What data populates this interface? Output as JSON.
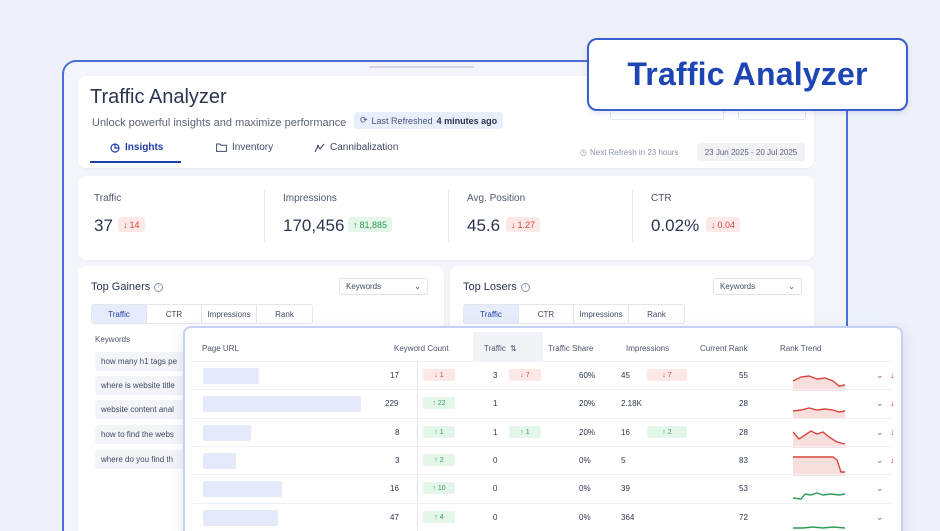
{
  "callout": {
    "title": "Traffic Analyzer"
  },
  "header": {
    "title": "Traffic Analyzer",
    "subtitle": "Unlock powerful insights and maximize performance",
    "last_refreshed_label": "Last Refreshed",
    "last_refreshed_value": "4 minutes ago",
    "tabs": [
      {
        "label": "Insights",
        "icon": "chart-pie-icon",
        "active": true
      },
      {
        "label": "Inventory",
        "icon": "folder-icon",
        "active": false
      },
      {
        "label": "Cannibalization",
        "icon": "cannibalization-icon",
        "active": false
      }
    ],
    "next_refresh": "Next Refresh in 23 hours",
    "date_range": "23 Jun 2025 - 20 Jul 2025"
  },
  "metrics": [
    {
      "label": "Traffic",
      "value": "37",
      "delta": "14",
      "direction": "down"
    },
    {
      "label": "Impressions",
      "value": "170,456",
      "delta": "81,885",
      "direction": "up"
    },
    {
      "label": "Avg. Position",
      "value": "45.6",
      "delta": "1.27",
      "direction": "down"
    },
    {
      "label": "CTR",
      "value": "0.02%",
      "delta": "0.04",
      "direction": "down"
    }
  ],
  "gainers": {
    "title": "Top Gainers",
    "dropdown": "Keywords",
    "subtabs": [
      "Traffic",
      "CTR",
      "Impressions",
      "Rank"
    ],
    "keywords_header": "Keywords",
    "keywords": [
      "how many h1 tags pe",
      "where is website title",
      "website content anal",
      "how to find the webs",
      "where do you find th"
    ]
  },
  "losers": {
    "title": "Top Losers",
    "dropdown": "Keywords",
    "subtabs": [
      "Traffic",
      "CTR",
      "Impressions",
      "Rank"
    ]
  },
  "table": {
    "headers": {
      "page_url": "Page URL",
      "keyword_count": "Keyword Count",
      "traffic": "Traffic",
      "traffic_share": "Traffic Share",
      "impressions": "Impressions",
      "current_rank": "Current Rank",
      "rank_trend": "Rank Trend"
    },
    "rows": [
      {
        "kw": "17",
        "kw_delta": "1",
        "kw_dir": "down",
        "traffic": "3",
        "tr_delta": "7",
        "tr_dir": "down",
        "share": "60%",
        "imp": "45",
        "imp_delta": "7",
        "imp_dir": "down",
        "rank": "55",
        "trend": "red"
      },
      {
        "kw": "229",
        "kw_delta": "22",
        "kw_dir": "up",
        "traffic": "1",
        "tr_delta": "",
        "tr_dir": "",
        "share": "20%",
        "imp": "2.18K",
        "imp_delta": "",
        "imp_dir": "",
        "rank": "28",
        "trend": "red"
      },
      {
        "kw": "8",
        "kw_delta": "1",
        "kw_dir": "up",
        "traffic": "1",
        "tr_delta": "1",
        "tr_dir": "up",
        "share": "20%",
        "imp": "16",
        "imp_delta": "2",
        "imp_dir": "up",
        "rank": "28",
        "trend": "red"
      },
      {
        "kw": "3",
        "kw_delta": "2",
        "kw_dir": "up",
        "traffic": "0",
        "tr_delta": "",
        "tr_dir": "",
        "share": "0%",
        "imp": "5",
        "imp_delta": "",
        "imp_dir": "",
        "rank": "83",
        "trend": "red"
      },
      {
        "kw": "16",
        "kw_delta": "10",
        "kw_dir": "up",
        "traffic": "0",
        "tr_delta": "",
        "tr_dir": "",
        "share": "0%",
        "imp": "39",
        "imp_delta": "",
        "imp_dir": "",
        "rank": "53",
        "trend": "green"
      },
      {
        "kw": "47",
        "kw_delta": "4",
        "kw_dir": "up",
        "traffic": "0",
        "tr_delta": "",
        "tr_dir": "",
        "share": "0%",
        "imp": "364",
        "imp_delta": "",
        "imp_dir": "",
        "rank": "72",
        "trend": "green"
      }
    ]
  },
  "colors": {
    "primary": "#1d45b3",
    "accent": "#7b93e6",
    "up": "#2e9b55",
    "down": "#d9463e"
  }
}
